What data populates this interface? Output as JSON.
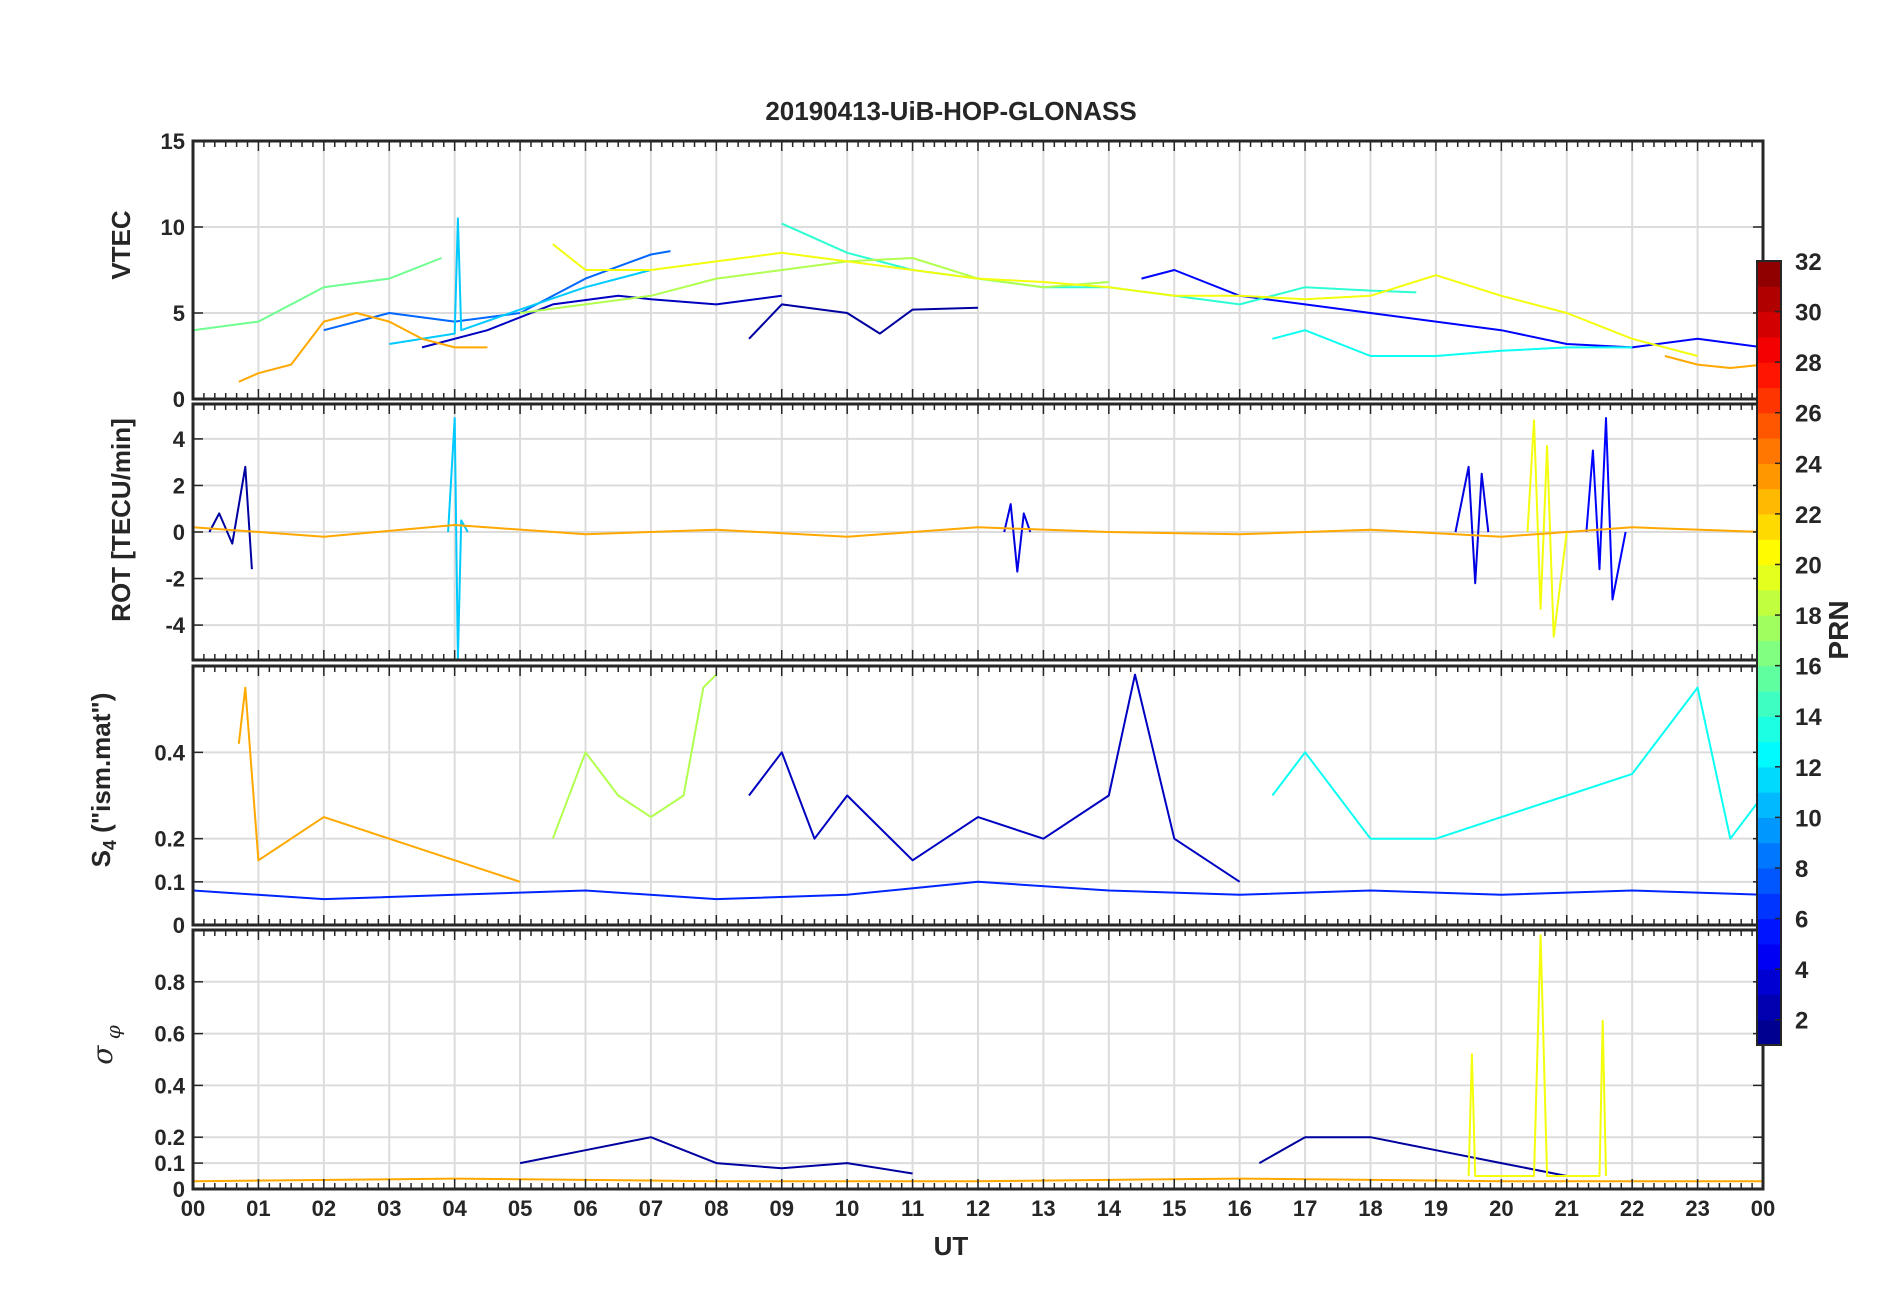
{
  "figure": {
    "title": "20190413-UiB-HOP-GLONASS",
    "xlabel": "UT",
    "x_ticks": [
      "00",
      "01",
      "02",
      "03",
      "04",
      "05",
      "06",
      "07",
      "08",
      "09",
      "10",
      "11",
      "12",
      "13",
      "14",
      "15",
      "16",
      "17",
      "18",
      "19",
      "20",
      "21",
      "22",
      "23",
      "00"
    ]
  },
  "colorbar": {
    "label": "PRN",
    "range": [
      1,
      32
    ],
    "ticks": [
      "2",
      "4",
      "6",
      "8",
      "10",
      "12",
      "14",
      "16",
      "18",
      "20",
      "22",
      "24",
      "26",
      "28",
      "30",
      "32"
    ],
    "colormap": "jet"
  },
  "chart_data": [
    {
      "type": "line",
      "panel": "vtec",
      "ylabel": "VTEC",
      "xlim": [
        0,
        24
      ],
      "ylim": [
        0,
        15
      ],
      "y_ticks": [
        "0",
        "5",
        "10",
        "15"
      ],
      "grid": true,
      "series": [
        {
          "prn": 2,
          "x": [
            8.5,
            9.0,
            10.0,
            10.5,
            11.0,
            12.0
          ],
          "y": [
            3.5,
            5.5,
            5.0,
            3.8,
            5.2,
            5.3
          ]
        },
        {
          "prn": 3,
          "x": [
            3.5,
            4.5,
            5.5,
            6.5,
            7.0,
            8.0,
            9.0
          ],
          "y": [
            3.0,
            4.0,
            5.5,
            6.0,
            5.8,
            5.5,
            6.0
          ]
        },
        {
          "prn": 5,
          "x": [
            14.5,
            15.0,
            16.0,
            17.0,
            18.0,
            19.0,
            20.0,
            21.0,
            22.0,
            23.0,
            24.0
          ],
          "y": [
            7.0,
            7.5,
            6.0,
            5.5,
            5.0,
            4.5,
            4.0,
            3.2,
            3.0,
            3.5,
            3.0
          ]
        },
        {
          "prn": 8,
          "x": [
            2.0,
            3.0,
            4.0,
            5.0,
            6.0,
            7.0,
            7.3
          ],
          "y": [
            4.0,
            5.0,
            4.5,
            5.0,
            7.0,
            8.4,
            8.6
          ]
        },
        {
          "prn": 11,
          "x": [
            3.0,
            4.0,
            4.05,
            4.1,
            5.0,
            6.0,
            7.0
          ],
          "y": [
            3.2,
            3.8,
            10.5,
            4.0,
            5.2,
            6.5,
            7.5
          ]
        },
        {
          "prn": 13,
          "x": [
            16.5,
            17.0,
            18.0,
            19.0,
            20.0,
            21.0,
            22.0
          ],
          "y": [
            3.5,
            4.0,
            2.5,
            2.5,
            2.8,
            3.0,
            3.0
          ]
        },
        {
          "prn": 14,
          "x": [
            9.0,
            10.0,
            11.0,
            12.0,
            13.0,
            14.0,
            15.0,
            16.0,
            17.0,
            18.0,
            18.7
          ],
          "y": [
            10.2,
            8.5,
            7.5,
            7.0,
            6.5,
            6.5,
            6.0,
            5.5,
            6.5,
            6.3,
            6.2
          ]
        },
        {
          "prn": 16,
          "x": [
            0.0,
            1.0,
            2.0,
            3.0,
            3.8
          ],
          "y": [
            4.0,
            4.5,
            6.5,
            7.0,
            8.2
          ]
        },
        {
          "prn": 18,
          "x": [
            5.0,
            6.0,
            7.0,
            8.0,
            9.0,
            10.0,
            11.0,
            12.0,
            13.0,
            14.0
          ],
          "y": [
            5.0,
            5.5,
            6.0,
            7.0,
            7.5,
            8.0,
            8.2,
            7.0,
            6.5,
            6.8
          ]
        },
        {
          "prn": 20,
          "x": [
            5.5,
            6.0,
            7.0,
            8.0,
            9.0,
            10.0,
            11.0,
            12.0,
            13.0,
            14.0,
            15.0,
            16.0,
            17.0,
            18.0,
            19.0,
            20.0,
            21.0,
            22.0,
            23.0
          ],
          "y": [
            9.0,
            7.5,
            7.5,
            8.0,
            8.5,
            8.0,
            7.5,
            7.0,
            6.8,
            6.5,
            6.0,
            6.0,
            5.8,
            6.0,
            7.2,
            6.0,
            5.0,
            3.5,
            2.5
          ]
        },
        {
          "prn": 23,
          "x": [
            0.7,
            1.0,
            1.5,
            2.0,
            2.5,
            3.0,
            3.5,
            4.0,
            4.5
          ],
          "y": [
            1.0,
            1.5,
            2.0,
            4.5,
            5.0,
            4.5,
            3.5,
            3.0,
            3.0
          ]
        },
        {
          "prn": 23,
          "x": [
            22.5,
            23.0,
            23.5,
            24.0
          ],
          "y": [
            2.5,
            2.0,
            1.8,
            2.0
          ]
        }
      ]
    },
    {
      "type": "line",
      "panel": "rot",
      "ylabel": "ROT [TECU/min]",
      "xlim": [
        0,
        24
      ],
      "ylim": [
        -5.5,
        5.5
      ],
      "y_ticks": [
        "-4",
        "-2",
        "0",
        "2",
        "4"
      ],
      "grid": true,
      "series": [
        {
          "prn": 2,
          "x": [
            0.25,
            0.4,
            0.6,
            0.8,
            0.9
          ],
          "y": [
            0.0,
            0.8,
            -0.5,
            2.8,
            -1.6
          ]
        },
        {
          "prn": 11,
          "x": [
            3.9,
            4.0,
            4.05,
            4.1,
            4.2
          ],
          "y": [
            0.0,
            4.9,
            -5.5,
            0.5,
            0.0
          ]
        },
        {
          "prn": 4,
          "x": [
            12.4,
            12.5,
            12.6,
            12.7,
            12.8
          ],
          "y": [
            0.0,
            1.2,
            -1.7,
            0.8,
            0.0
          ]
        },
        {
          "prn": 4,
          "x": [
            19.3,
            19.5,
            19.6,
            19.7,
            19.8
          ],
          "y": [
            0.0,
            2.8,
            -2.2,
            2.5,
            0.0
          ]
        },
        {
          "prn": 20,
          "x": [
            20.4,
            20.5,
            20.6,
            20.7,
            20.8,
            21.0
          ],
          "y": [
            0.0,
            4.8,
            -3.3,
            3.7,
            -4.5,
            0.0
          ]
        },
        {
          "prn": 5,
          "x": [
            21.3,
            21.4,
            21.5,
            21.6,
            21.7,
            21.9
          ],
          "y": [
            0.0,
            3.5,
            -1.6,
            4.9,
            -2.9,
            0.0
          ]
        },
        {
          "prn": 23,
          "x": [
            0.0,
            2.0,
            4.0,
            6.0,
            8.0,
            10.0,
            12.0,
            14.0,
            16.0,
            18.0,
            20.0,
            22.0,
            24.0
          ],
          "y": [
            0.2,
            -0.2,
            0.3,
            -0.1,
            0.1,
            -0.2,
            0.2,
            0.0,
            -0.1,
            0.1,
            -0.2,
            0.2,
            0.0
          ]
        }
      ]
    },
    {
      "type": "line",
      "panel": "s4",
      "ylabel": "S4 (\"ism.mat\")",
      "xlim": [
        0,
        24
      ],
      "ylim": [
        0,
        0.6
      ],
      "y_ticks": [
        "0",
        "0.1",
        "0.2",
        "0.4"
      ],
      "grid": true,
      "series": [
        {
          "prn": 23,
          "x": [
            0.7,
            0.8,
            1.0,
            2.0,
            3.0,
            4.0,
            5.0
          ],
          "y": [
            0.42,
            0.55,
            0.15,
            0.25,
            0.2,
            0.15,
            0.1
          ]
        },
        {
          "prn": 18,
          "x": [
            5.5,
            6.0,
            6.5,
            7.0,
            7.5,
            7.8,
            8.0
          ],
          "y": [
            0.2,
            0.4,
            0.3,
            0.25,
            0.3,
            0.55,
            0.58
          ]
        },
        {
          "prn": 3,
          "x": [
            8.5,
            9.0,
            9.5,
            10.0,
            11.0,
            12.0,
            13.0,
            14.0,
            14.4,
            15.0,
            16.0
          ],
          "y": [
            0.3,
            0.4,
            0.2,
            0.3,
            0.15,
            0.25,
            0.2,
            0.3,
            0.58,
            0.2,
            0.1
          ]
        },
        {
          "prn": 13,
          "x": [
            16.5,
            17.0,
            18.0,
            19.0,
            20.0,
            21.0,
            22.0,
            23.0,
            23.5,
            24.0
          ],
          "y": [
            0.3,
            0.4,
            0.2,
            0.2,
            0.25,
            0.3,
            0.35,
            0.55,
            0.2,
            0.3
          ]
        },
        {
          "prn": 6,
          "x": [
            0.0,
            2.0,
            4.0,
            6.0,
            8.0,
            10.0,
            12.0,
            14.0,
            16.0,
            18.0,
            20.0,
            22.0,
            24.0
          ],
          "y": [
            0.08,
            0.06,
            0.07,
            0.08,
            0.06,
            0.07,
            0.1,
            0.08,
            0.07,
            0.08,
            0.07,
            0.08,
            0.07
          ]
        }
      ]
    },
    {
      "type": "line",
      "panel": "sigma_phi",
      "ylabel": "σ_φ",
      "xlim": [
        0,
        24
      ],
      "ylim": [
        0,
        1.0
      ],
      "y_ticks": [
        "0",
        "0.1",
        "0.2",
        "0.4",
        "0.6",
        "0.8"
      ],
      "grid": true,
      "series": [
        {
          "prn": 2,
          "x": [
            5.0,
            6.0,
            7.0,
            8.0,
            9.0,
            10.0,
            11.0
          ],
          "y": [
            0.1,
            0.15,
            0.2,
            0.1,
            0.08,
            0.1,
            0.06
          ]
        },
        {
          "prn": 2,
          "x": [
            16.3,
            17.0,
            18.0,
            19.0,
            20.0,
            21.0
          ],
          "y": [
            0.1,
            0.2,
            0.2,
            0.15,
            0.1,
            0.05
          ]
        },
        {
          "prn": 20,
          "x": [
            19.5,
            19.55,
            19.6,
            20.5,
            20.6,
            20.7,
            21.5,
            21.55,
            21.6
          ],
          "y": [
            0.05,
            0.52,
            0.05,
            0.05,
            0.98,
            0.05,
            0.05,
            0.65,
            0.05
          ]
        },
        {
          "prn": 23,
          "x": [
            0.0,
            4.0,
            8.0,
            12.0,
            16.0,
            20.0,
            24.0
          ],
          "y": [
            0.03,
            0.04,
            0.03,
            0.03,
            0.04,
            0.03,
            0.03
          ]
        }
      ]
    }
  ]
}
